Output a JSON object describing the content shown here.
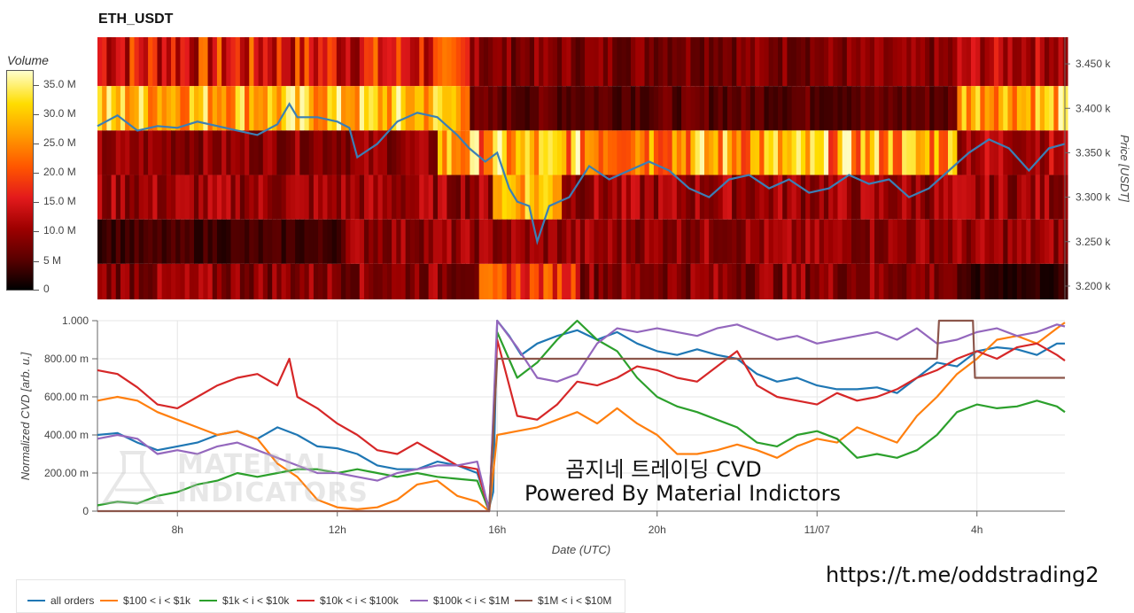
{
  "title": "ETH_USDT",
  "colorbar": {
    "title": "Volume",
    "ticks": [
      "35.0 M",
      "30.0 M",
      "25.0 M",
      "20.0 M",
      "15.0 M",
      "10.0 M",
      "5 M",
      "0"
    ]
  },
  "logo": {
    "line1": "MATERIAL",
    "line2": "INDICATORS",
    "icon": "flask-icon"
  },
  "watermark": {
    "line1": "곰지네 트레이딩 CVD",
    "line2": "Powered By Material Indictors"
  },
  "telegram_link": "https://t.me/oddstrading2",
  "chart_data": [
    {
      "type": "heatmap",
      "title": "ETH_USDT",
      "ylabel": "Price [USDT]",
      "y_ticks": [
        "3.450 k",
        "3.400 k",
        "3.350 k",
        "3.300 k",
        "3.250 k",
        "3.200 k"
      ],
      "y_tick_values": [
        3450,
        3400,
        3350,
        3300,
        3250,
        3200
      ],
      "ylim": [
        3185,
        3480
      ],
      "x_range_hours": [
        6,
        30.2
      ],
      "price_bands": [
        [
          3425,
          3480
        ],
        [
          3375,
          3425
        ],
        [
          3325,
          3375
        ],
        [
          3275,
          3325
        ],
        [
          3225,
          3275
        ],
        [
          3185,
          3225
        ]
      ],
      "colorscale_max": 38,
      "price_line": {
        "color": "#3b7fb5",
        "x": [
          6,
          6.5,
          7,
          7.5,
          8,
          8.5,
          9,
          9.5,
          10,
          10.5,
          10.8,
          11,
          11.5,
          12,
          12.3,
          12.5,
          13,
          13.5,
          14,
          14.5,
          15,
          15.3,
          15.7,
          16,
          16.3,
          16.5,
          16.8,
          17,
          17.3,
          17.8,
          18.3,
          18.8,
          19.3,
          19.8,
          20.3,
          20.8,
          21.3,
          21.8,
          22.3,
          22.8,
          23.3,
          23.8,
          24.3,
          24.8,
          25.3,
          25.8,
          26.3,
          26.8,
          27.3,
          27.8,
          28.3,
          28.8,
          29.3,
          29.8,
          30.2
        ],
        "y": [
          3380,
          3392,
          3375,
          3380,
          3378,
          3385,
          3380,
          3375,
          3370,
          3382,
          3405,
          3390,
          3390,
          3385,
          3378,
          3345,
          3360,
          3385,
          3395,
          3390,
          3370,
          3355,
          3340,
          3350,
          3310,
          3295,
          3290,
          3250,
          3290,
          3300,
          3335,
          3320,
          3330,
          3340,
          3330,
          3310,
          3300,
          3320,
          3325,
          3310,
          3320,
          3305,
          3310,
          3325,
          3315,
          3320,
          3300,
          3310,
          3330,
          3350,
          3365,
          3355,
          3330,
          3355,
          3360
        ]
      }
    },
    {
      "type": "line",
      "xlabel": "Date (UTC)",
      "ylabel": "Normalized CVD [arb. u.]",
      "ylim": [
        0,
        1
      ],
      "x_ticks": [
        "8h",
        "12h",
        "16h",
        "20h",
        "11/07",
        "4h"
      ],
      "x_tick_values": [
        8,
        12,
        16,
        20,
        24,
        28
      ],
      "y_ticks": [
        "0",
        "200.00 m",
        "400.00 m",
        "600.00 m",
        "800.00 m",
        "1.000"
      ],
      "y_tick_values": [
        0,
        0.2,
        0.4,
        0.6,
        0.8,
        1.0
      ],
      "xlim": [
        6,
        30.2
      ],
      "series": [
        {
          "name": "all orders",
          "color": "#1f77b4",
          "x": [
            6,
            6.5,
            7,
            7.5,
            8,
            8.5,
            9,
            9.5,
            10,
            10.5,
            11,
            11.5,
            12,
            12.5,
            13,
            13.5,
            14,
            14.5,
            15,
            15.5,
            15.8,
            15.9,
            16,
            16.3,
            16.6,
            17,
            17.5,
            18,
            18.5,
            19,
            19.5,
            20,
            20.5,
            21,
            21.5,
            22,
            22.5,
            23,
            23.5,
            24,
            24.5,
            25,
            25.5,
            26,
            26.5,
            27,
            27.5,
            28,
            28.5,
            29,
            29.5,
            30,
            30.2
          ],
          "y": [
            0.4,
            0.41,
            0.36,
            0.32,
            0.34,
            0.36,
            0.4,
            0.42,
            0.38,
            0.44,
            0.4,
            0.34,
            0.33,
            0.3,
            0.24,
            0.22,
            0.22,
            0.26,
            0.24,
            0.2,
            0.02,
            0.1,
            1.0,
            0.92,
            0.82,
            0.88,
            0.92,
            0.95,
            0.9,
            0.94,
            0.88,
            0.84,
            0.82,
            0.85,
            0.82,
            0.8,
            0.72,
            0.68,
            0.7,
            0.66,
            0.64,
            0.64,
            0.65,
            0.62,
            0.7,
            0.78,
            0.76,
            0.84,
            0.86,
            0.85,
            0.82,
            0.88,
            0.88
          ]
        },
        {
          "name": "$100 < i < $1k",
          "color": "#ff7f0e",
          "x": [
            6,
            6.5,
            7,
            7.5,
            8,
            8.5,
            9,
            9.5,
            10,
            10.5,
            11,
            11.5,
            12,
            12.5,
            13,
            13.5,
            14,
            14.5,
            15,
            15.5,
            15.8,
            16,
            16.5,
            17,
            17.5,
            18,
            18.5,
            19,
            19.5,
            20,
            20.5,
            21,
            21.5,
            22,
            22.5,
            23,
            23.5,
            24,
            24.5,
            25,
            25.5,
            26,
            26.5,
            27,
            27.5,
            28,
            28.5,
            29,
            29.5,
            30,
            30.2
          ],
          "y": [
            0.58,
            0.6,
            0.58,
            0.52,
            0.48,
            0.44,
            0.4,
            0.42,
            0.38,
            0.25,
            0.18,
            0.06,
            0.02,
            0.01,
            0.02,
            0.06,
            0.14,
            0.16,
            0.08,
            0.05,
            0.0,
            0.4,
            0.42,
            0.44,
            0.48,
            0.52,
            0.46,
            0.54,
            0.46,
            0.4,
            0.3,
            0.3,
            0.32,
            0.35,
            0.32,
            0.28,
            0.34,
            0.38,
            0.36,
            0.44,
            0.4,
            0.36,
            0.5,
            0.6,
            0.72,
            0.8,
            0.9,
            0.92,
            0.88,
            0.96,
            0.99
          ]
        },
        {
          "name": "$1k < i < $10k",
          "color": "#2ca02c",
          "x": [
            6,
            6.5,
            7,
            7.5,
            8,
            8.5,
            9,
            9.5,
            10,
            10.5,
            11,
            11.5,
            12,
            12.5,
            13,
            13.5,
            14,
            14.5,
            15,
            15.5,
            15.8,
            16,
            16.5,
            17,
            17.5,
            18,
            18.5,
            19,
            19.5,
            20,
            20.5,
            21,
            21.5,
            22,
            22.5,
            23,
            23.5,
            24,
            24.5,
            25,
            25.5,
            26,
            26.5,
            27,
            27.5,
            28,
            28.5,
            29,
            29.5,
            30,
            30.2
          ],
          "y": [
            0.03,
            0.05,
            0.04,
            0.08,
            0.1,
            0.14,
            0.16,
            0.2,
            0.18,
            0.2,
            0.22,
            0.22,
            0.2,
            0.22,
            0.2,
            0.18,
            0.2,
            0.18,
            0.17,
            0.16,
            0.0,
            0.94,
            0.7,
            0.78,
            0.9,
            1.0,
            0.9,
            0.84,
            0.7,
            0.6,
            0.55,
            0.52,
            0.48,
            0.44,
            0.36,
            0.34,
            0.4,
            0.42,
            0.38,
            0.28,
            0.3,
            0.28,
            0.32,
            0.4,
            0.52,
            0.56,
            0.54,
            0.55,
            0.58,
            0.55,
            0.52
          ]
        },
        {
          "name": "$10k < i < $100k",
          "color": "#d62728",
          "x": [
            6,
            6.5,
            7,
            7.5,
            8,
            8.5,
            9,
            9.5,
            10,
            10.5,
            10.8,
            11,
            11.5,
            12,
            12.5,
            13,
            13.5,
            14,
            14.5,
            15,
            15.5,
            15.8,
            16,
            16.5,
            17,
            17.5,
            18,
            18.5,
            19,
            19.5,
            20,
            20.5,
            21,
            21.5,
            22,
            22.5,
            23,
            23.5,
            24,
            24.5,
            25,
            25.5,
            26,
            26.5,
            27,
            27.5,
            28,
            28.5,
            29,
            29.5,
            30,
            30.2
          ],
          "y": [
            0.74,
            0.72,
            0.65,
            0.56,
            0.54,
            0.6,
            0.66,
            0.7,
            0.72,
            0.66,
            0.8,
            0.6,
            0.54,
            0.46,
            0.4,
            0.32,
            0.3,
            0.36,
            0.3,
            0.24,
            0.22,
            0.0,
            0.9,
            0.5,
            0.48,
            0.56,
            0.68,
            0.66,
            0.7,
            0.76,
            0.74,
            0.7,
            0.68,
            0.76,
            0.84,
            0.66,
            0.6,
            0.58,
            0.56,
            0.62,
            0.58,
            0.6,
            0.64,
            0.7,
            0.74,
            0.8,
            0.84,
            0.8,
            0.86,
            0.88,
            0.82,
            0.79
          ]
        },
        {
          "name": "$100k < i < $1M",
          "color": "#9467bd",
          "x": [
            6,
            6.5,
            7,
            7.5,
            8,
            8.5,
            9,
            9.5,
            10,
            10.5,
            11,
            11.5,
            12,
            12.5,
            13,
            13.5,
            14,
            14.5,
            15,
            15.5,
            15.8,
            16,
            16.5,
            17,
            17.5,
            18,
            18.5,
            19,
            19.5,
            20,
            20.5,
            21,
            21.5,
            22,
            22.5,
            23,
            23.5,
            24,
            24.5,
            25,
            25.5,
            26,
            26.5,
            27,
            27.5,
            28,
            28.5,
            29,
            29.5,
            30,
            30.2
          ],
          "y": [
            0.38,
            0.4,
            0.38,
            0.3,
            0.32,
            0.3,
            0.34,
            0.36,
            0.32,
            0.28,
            0.24,
            0.2,
            0.2,
            0.18,
            0.16,
            0.2,
            0.22,
            0.24,
            0.24,
            0.26,
            0.0,
            1.0,
            0.86,
            0.7,
            0.68,
            0.72,
            0.88,
            0.96,
            0.94,
            0.96,
            0.94,
            0.92,
            0.96,
            0.98,
            0.94,
            0.9,
            0.92,
            0.88,
            0.9,
            0.92,
            0.94,
            0.9,
            0.96,
            0.88,
            0.9,
            0.94,
            0.96,
            0.92,
            0.94,
            0.98,
            0.97
          ]
        },
        {
          "name": "$1M < i < $10M",
          "color": "#8c564b",
          "x": [
            6,
            15.8,
            16,
            17,
            17.5,
            18,
            26.9,
            27,
            27.05,
            27.9,
            27.95,
            28,
            30.2
          ],
          "y": [
            0,
            0,
            0.8,
            0.8,
            0.8,
            0.8,
            0.8,
            0.8,
            1.0,
            1.0,
            0.7,
            0.7,
            0.7
          ]
        }
      ]
    }
  ]
}
